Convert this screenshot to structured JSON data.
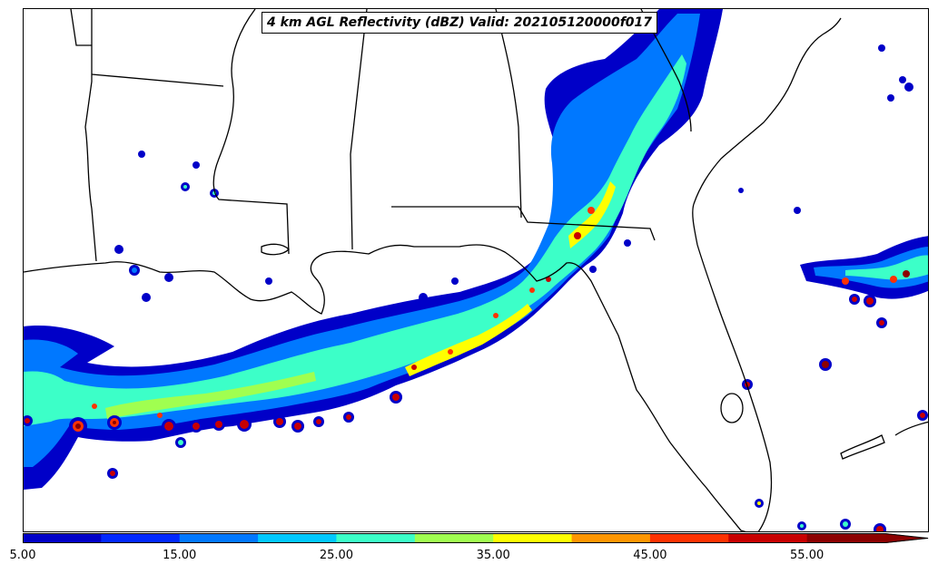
{
  "map": {
    "title": "4 km AGL Reflectivity (dBZ) Valid: 202105120000f017",
    "field": "reflectivity",
    "units": "dBZ"
  },
  "colorbar": {
    "min": 5,
    "max": 60,
    "step": 5,
    "extend": "max",
    "tick_labels": [
      "5.00",
      "15.00",
      "25.00",
      "35.00",
      "45.00",
      "55.00"
    ],
    "tick_values": [
      5,
      15,
      25,
      35,
      45,
      55
    ],
    "colors": [
      "#0000c8",
      "#0028ff",
      "#0078ff",
      "#00c8ff",
      "#3cffc8",
      "#a0ff50",
      "#ffff00",
      "#ff9600",
      "#ff3200",
      "#c80000",
      "#8c0000"
    ]
  }
}
